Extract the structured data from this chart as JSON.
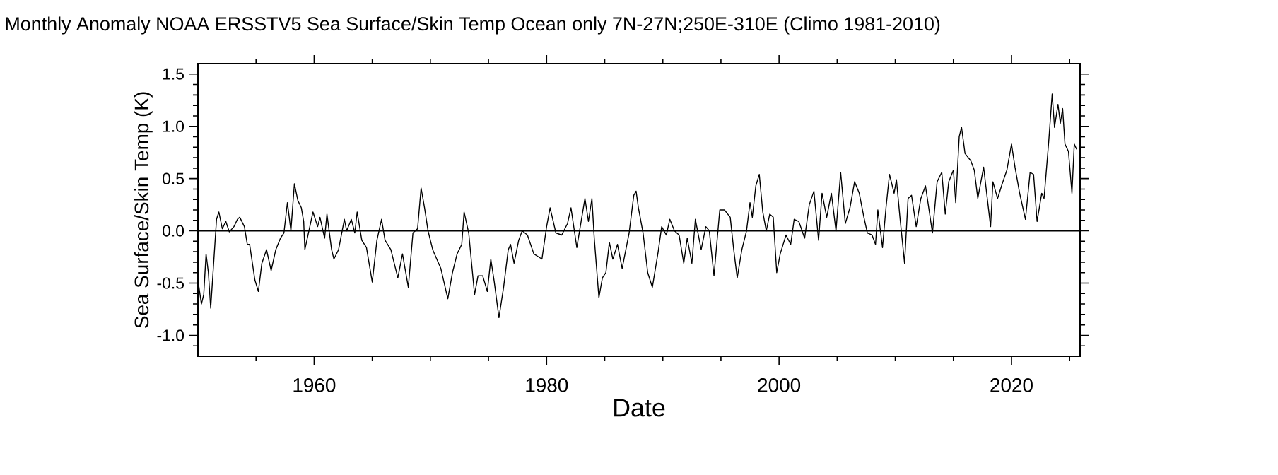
{
  "chart_data": {
    "type": "line",
    "title": "Monthly Anomaly NOAA ERSSTV5   Sea Surface/Skin Temp Ocean only 7N-27N;250E-310E (Climo 1981-2010)",
    "xlabel": "Date",
    "ylabel": "Sea Surface/Skin Temp (K)",
    "xlim": [
      1950,
      2025.9
    ],
    "ylim": [
      -1.2,
      1.6
    ],
    "xticks": [
      {
        "value": 1955,
        "label": null
      },
      {
        "value": 1960,
        "label": "1960"
      },
      {
        "value": 1965,
        "label": null
      },
      {
        "value": 1970,
        "label": null
      },
      {
        "value": 1975,
        "label": null
      },
      {
        "value": 1980,
        "label": "1980"
      },
      {
        "value": 1985,
        "label": null
      },
      {
        "value": 1990,
        "label": null
      },
      {
        "value": 1995,
        "label": null
      },
      {
        "value": 2000,
        "label": "2000"
      },
      {
        "value": 2005,
        "label": null
      },
      {
        "value": 2010,
        "label": null
      },
      {
        "value": 2015,
        "label": null
      },
      {
        "value": 2020,
        "label": "2020"
      },
      {
        "value": 2025,
        "label": null
      }
    ],
    "yticks": [
      {
        "value": -1.0,
        "label": "-1.0"
      },
      {
        "value": -0.5,
        "label": "-0.5"
      },
      {
        "value": 0.0,
        "label": "0.0"
      },
      {
        "value": 0.5,
        "label": "0.5"
      },
      {
        "value": 1.0,
        "label": "1.0"
      },
      {
        "value": 1.5,
        "label": "1.5"
      },
      {
        "value": -1.1,
        "label": null
      },
      {
        "value": -0.9,
        "label": null
      },
      {
        "value": -0.8,
        "label": null
      },
      {
        "value": -0.7,
        "label": null
      },
      {
        "value": -0.6,
        "label": null
      },
      {
        "value": -0.4,
        "label": null
      },
      {
        "value": -0.3,
        "label": null
      },
      {
        "value": -0.2,
        "label": null
      },
      {
        "value": -0.1,
        "label": null
      },
      {
        "value": 0.1,
        "label": null
      },
      {
        "value": 0.2,
        "label": null
      },
      {
        "value": 0.3,
        "label": null
      },
      {
        "value": 0.4,
        "label": null
      },
      {
        "value": 0.6,
        "label": null
      },
      {
        "value": 0.7,
        "label": null
      },
      {
        "value": 0.8,
        "label": null
      },
      {
        "value": 0.9,
        "label": null
      },
      {
        "value": 1.1,
        "label": null
      },
      {
        "value": 1.2,
        "label": null
      },
      {
        "value": 1.3,
        "label": null
      },
      {
        "value": 1.4,
        "label": null
      }
    ],
    "ref_lines": [
      {
        "axis": "y",
        "value": 0,
        "color": "#000000"
      }
    ],
    "series": [
      {
        "color": "#000000",
        "x": [
          1950.0,
          1950.3,
          1950.5,
          1950.7,
          1950.9,
          1951.1,
          1951.6,
          1951.8,
          1952.1,
          1952.4,
          1952.7,
          1953.1,
          1953.4,
          1953.6,
          1954.0,
          1954.25,
          1954.45,
          1954.9,
          1955.2,
          1955.5,
          1955.9,
          1956.3,
          1956.7,
          1957.1,
          1957.4,
          1957.7,
          1958.0,
          1958.3,
          1958.6,
          1958.9,
          1959.1,
          1959.2,
          1959.9,
          1960.3,
          1960.5,
          1960.9,
          1961.1,
          1961.5,
          1961.7,
          1962.1,
          1962.6,
          1962.8,
          1963.2,
          1963.5,
          1963.7,
          1964.1,
          1964.5,
          1965.0,
          1965.4,
          1965.8,
          1966.1,
          1966.6,
          1967.2,
          1967.6,
          1968.1,
          1968.5,
          1968.9,
          1969.2,
          1969.5,
          1969.8,
          1970.2,
          1970.9,
          1971.5,
          1971.9,
          1972.3,
          1972.7,
          1972.9,
          1973.3,
          1973.8,
          1974.1,
          1974.5,
          1974.9,
          1975.2,
          1975.5,
          1975.9,
          1976.3,
          1976.7,
          1976.9,
          1977.2,
          1977.6,
          1977.9,
          1978.35,
          1978.9,
          1979.6,
          1980.0,
          1980.3,
          1980.8,
          1981.3,
          1981.8,
          1982.1,
          1982.6,
          1983.0,
          1983.3,
          1983.6,
          1983.9,
          1984.1,
          1984.5,
          1984.8,
          1985.1,
          1985.4,
          1985.7,
          1986.1,
          1986.5,
          1987.1,
          1987.5,
          1987.7,
          1987.9,
          1988.3,
          1988.7,
          1989.1,
          1989.6,
          1989.9,
          1990.3,
          1990.6,
          1991.0,
          1991.4,
          1991.8,
          1992.1,
          1992.5,
          1992.8,
          1993.3,
          1993.7,
          1994.0,
          1994.4,
          1994.9,
          1995.3,
          1995.8,
          1996.1,
          1996.4,
          1996.8,
          1997.2,
          1997.5,
          1997.7,
          1998.0,
          1998.3,
          1998.6,
          1998.9,
          1999.2,
          1999.5,
          1999.8,
          2000.1,
          2000.6,
          2001.0,
          2001.3,
          2001.7,
          2002.2,
          2002.6,
          2003.0,
          2003.4,
          2003.7,
          2004.1,
          2004.5,
          2004.9,
          2005.3,
          2005.7,
          2006.1,
          2006.5,
          2006.9,
          2007.3,
          2007.6,
          2008.0,
          2008.3,
          2008.5,
          2008.9,
          2009.2,
          2009.5,
          2009.9,
          2010.1,
          2010.4,
          2010.8,
          2011.1,
          2011.4,
          2011.8,
          2012.2,
          2012.6,
          2013.2,
          2013.6,
          2014.0,
          2014.3,
          2014.6,
          2015.0,
          2015.2,
          2015.5,
          2015.7,
          2016.0,
          2016.5,
          2016.8,
          2017.1,
          2017.6,
          2018.2,
          2018.4,
          2018.8,
          2019.2,
          2019.6,
          2020.0,
          2020.3,
          2020.7,
          2021.2,
          2021.6,
          2021.9,
          2022.2,
          2022.6,
          2022.8,
          2023.2,
          2023.5,
          2023.7,
          2024.0,
          2024.2,
          2024.4,
          2024.6,
          2024.9,
          2025.2,
          2025.4,
          2025.6
        ],
        "values": [
          -0.47,
          -0.7,
          -0.61,
          -0.22,
          -0.4,
          -0.74,
          0.11,
          0.18,
          0.02,
          0.09,
          -0.01,
          0.04,
          0.11,
          0.13,
          0.04,
          -0.13,
          -0.13,
          -0.47,
          -0.58,
          -0.31,
          -0.18,
          -0.38,
          -0.18,
          -0.07,
          -0.02,
          0.27,
          0.0,
          0.45,
          0.29,
          0.22,
          0.09,
          -0.18,
          0.18,
          0.04,
          0.13,
          -0.07,
          0.16,
          -0.18,
          -0.27,
          -0.18,
          0.11,
          0.0,
          0.11,
          -0.02,
          0.18,
          -0.09,
          -0.16,
          -0.49,
          -0.09,
          0.11,
          -0.09,
          -0.18,
          -0.45,
          -0.22,
          -0.54,
          -0.02,
          0.02,
          0.41,
          0.22,
          0.0,
          -0.18,
          -0.36,
          -0.65,
          -0.4,
          -0.22,
          -0.13,
          0.18,
          -0.02,
          -0.61,
          -0.43,
          -0.43,
          -0.58,
          -0.27,
          -0.49,
          -0.83,
          -0.54,
          -0.18,
          -0.13,
          -0.31,
          -0.09,
          0.0,
          -0.04,
          -0.22,
          -0.27,
          0.04,
          0.22,
          -0.02,
          -0.04,
          0.07,
          0.22,
          -0.16,
          0.11,
          0.31,
          0.09,
          0.31,
          -0.07,
          -0.64,
          -0.45,
          -0.4,
          -0.11,
          -0.27,
          -0.13,
          -0.36,
          -0.02,
          0.34,
          0.38,
          0.22,
          -0.02,
          -0.4,
          -0.54,
          -0.2,
          0.04,
          -0.04,
          0.11,
          0.0,
          -0.04,
          -0.31,
          -0.07,
          -0.31,
          0.11,
          -0.18,
          0.04,
          0.0,
          -0.43,
          0.2,
          0.2,
          0.13,
          -0.18,
          -0.45,
          -0.18,
          0.0,
          0.27,
          0.13,
          0.43,
          0.54,
          0.18,
          0.0,
          0.16,
          0.13,
          -0.4,
          -0.22,
          -0.04,
          -0.13,
          0.11,
          0.09,
          -0.07,
          0.25,
          0.38,
          -0.09,
          0.36,
          0.13,
          0.36,
          0.0,
          0.56,
          0.07,
          0.22,
          0.47,
          0.36,
          0.13,
          -0.02,
          -0.04,
          -0.13,
          0.2,
          -0.16,
          0.22,
          0.54,
          0.36,
          0.49,
          0.13,
          -0.31,
          0.31,
          0.34,
          0.04,
          0.31,
          0.43,
          -0.02,
          0.47,
          0.56,
          0.16,
          0.47,
          0.58,
          0.27,
          0.9,
          0.99,
          0.74,
          0.67,
          0.58,
          0.31,
          0.61,
          0.04,
          0.47,
          0.31,
          0.45,
          0.58,
          0.83,
          0.61,
          0.36,
          0.11,
          0.56,
          0.54,
          0.09,
          0.36,
          0.31,
          0.85,
          1.31,
          0.99,
          1.21,
          1.03,
          1.17,
          0.83,
          0.76,
          0.36,
          0.83,
          0.78
        ]
      }
    ]
  }
}
